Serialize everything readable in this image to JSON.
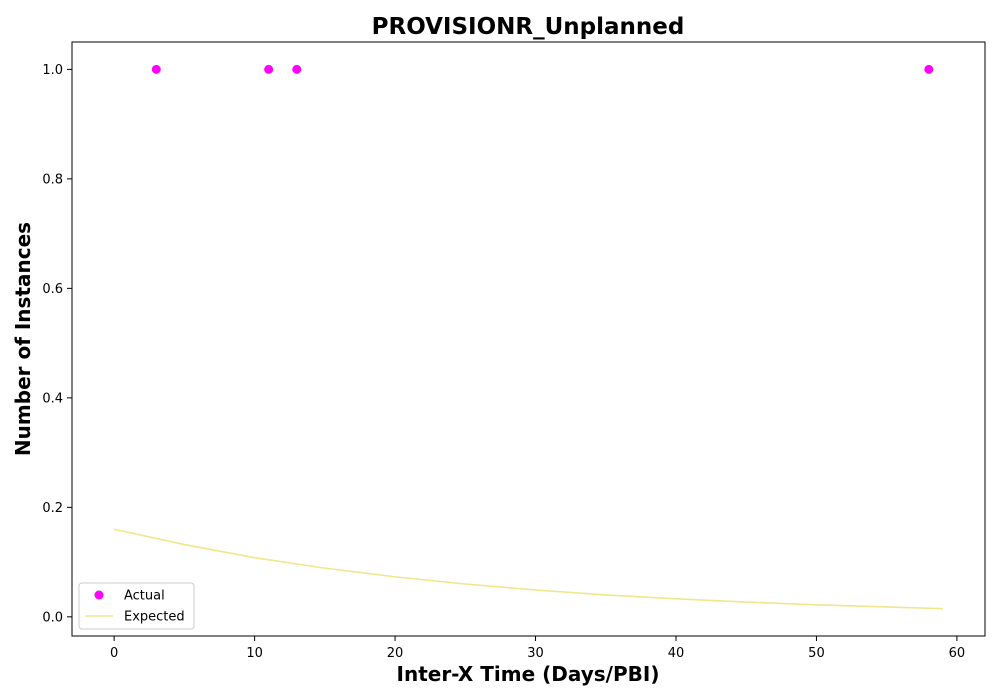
{
  "chart_data": {
    "type": "scatter",
    "title": "PROVISIONR_Unplanned",
    "xlabel": "Inter-X Time (Days/PBI)",
    "ylabel": "Number of Instances",
    "xlim": [
      -3,
      62
    ],
    "ylim": [
      -0.035,
      1.05
    ],
    "x_ticks": [
      0,
      10,
      20,
      30,
      40,
      50,
      60
    ],
    "y_ticks": [
      0.0,
      0.2,
      0.4,
      0.6,
      0.8,
      1.0
    ],
    "grid": false,
    "legend_position": "lower-left",
    "series": [
      {
        "name": "Actual",
        "kind": "scatter",
        "color": "#ff00ff",
        "x": [
          3,
          11,
          13,
          58
        ],
        "y": [
          1.0,
          1.0,
          1.0,
          1.0
        ]
      },
      {
        "name": "Expected",
        "kind": "line",
        "color": "#f0e68c",
        "x": [
          0,
          5,
          10,
          15,
          20,
          25,
          30,
          35,
          40,
          45,
          50,
          55,
          59
        ],
        "y": [
          0.16,
          0.132,
          0.108,
          0.089,
          0.073,
          0.06,
          0.049,
          0.04,
          0.033,
          0.027,
          0.022,
          0.018,
          0.015
        ]
      }
    ]
  }
}
